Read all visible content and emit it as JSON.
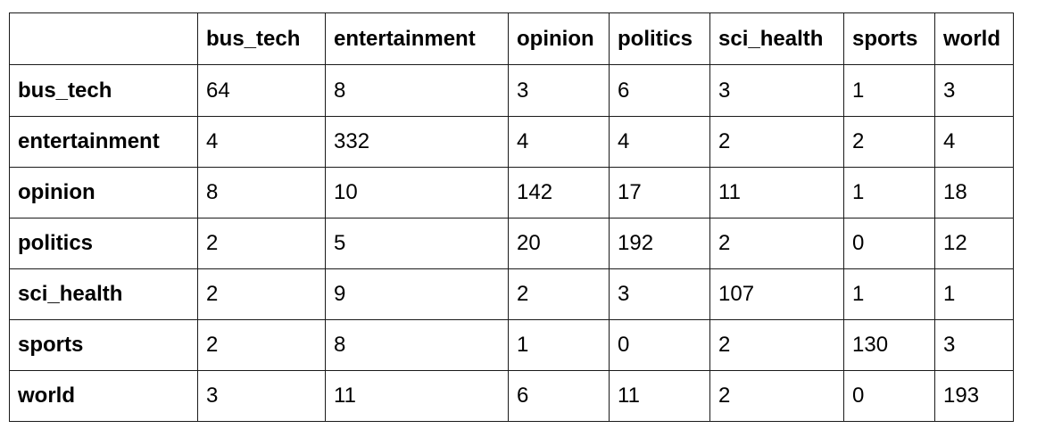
{
  "table": {
    "corner": "",
    "columns": [
      "bus_tech",
      "entertainment",
      "opinion",
      "politics",
      "sci_health",
      "sports",
      "world"
    ],
    "rows": [
      {
        "label": "bus_tech",
        "values": [
          "64",
          "8",
          "3",
          "6",
          "3",
          "1",
          "3"
        ]
      },
      {
        "label": "entertainment",
        "values": [
          "4",
          "332",
          "4",
          "4",
          "2",
          "2",
          "4"
        ]
      },
      {
        "label": "opinion",
        "values": [
          "8",
          "10",
          "142",
          "17",
          "11",
          "1",
          "18"
        ]
      },
      {
        "label": "politics",
        "values": [
          "2",
          "5",
          "20",
          "192",
          "2",
          "0",
          "12"
        ]
      },
      {
        "label": "sci_health",
        "values": [
          "2",
          "9",
          "2",
          "3",
          "107",
          "1",
          "1"
        ]
      },
      {
        "label": "sports",
        "values": [
          "2",
          "8",
          "1",
          "0",
          "2",
          "130",
          "3"
        ]
      },
      {
        "label": "world",
        "values": [
          "3",
          "11",
          "6",
          "11",
          "2",
          "0",
          "193"
        ]
      }
    ]
  }
}
